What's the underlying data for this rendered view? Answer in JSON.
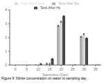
{
  "chart_data": {
    "type": "bar",
    "xlabel": "Sampling (Day)",
    "categories": [
      0,
      5,
      10,
      15,
      20,
      25,
      30,
      35
    ],
    "series": [
      {
        "name": "Tank After Bio",
        "color": "#b0b0b0",
        "values": [
          0.01,
          0.02,
          0.05,
          0.1,
          2.85,
          0.04,
          2.05,
          0.04
        ],
        "errors": [
          null,
          null,
          null,
          0.04,
          0.04,
          null,
          0.04,
          null
        ]
      },
      {
        "name": "Fish Pond Tank",
        "color": "#d8d8d8",
        "values": [
          0.01,
          0.02,
          0.04,
          0.08,
          3.15,
          0.04,
          2.25,
          0.04
        ],
        "errors": [
          null,
          null,
          null,
          0.04,
          0.04,
          null,
          0.04,
          null
        ]
      },
      {
        "name": "Tank After Hy",
        "color": "#484848",
        "values": [
          0.01,
          0.02,
          0.08,
          0.45,
          3.55,
          0.04,
          1.95,
          0.04
        ],
        "errors": [
          null,
          null,
          0.04,
          0.04,
          0.04,
          null,
          0.04,
          null
        ]
      }
    ],
    "ylim": [
      0,
      4.0
    ],
    "yticks": [
      0,
      1,
      2,
      3,
      4
    ],
    "legend": "upper center",
    "annotations": [
      "Figure 9: Nitrite concentration on water to sampling day"
    ]
  }
}
